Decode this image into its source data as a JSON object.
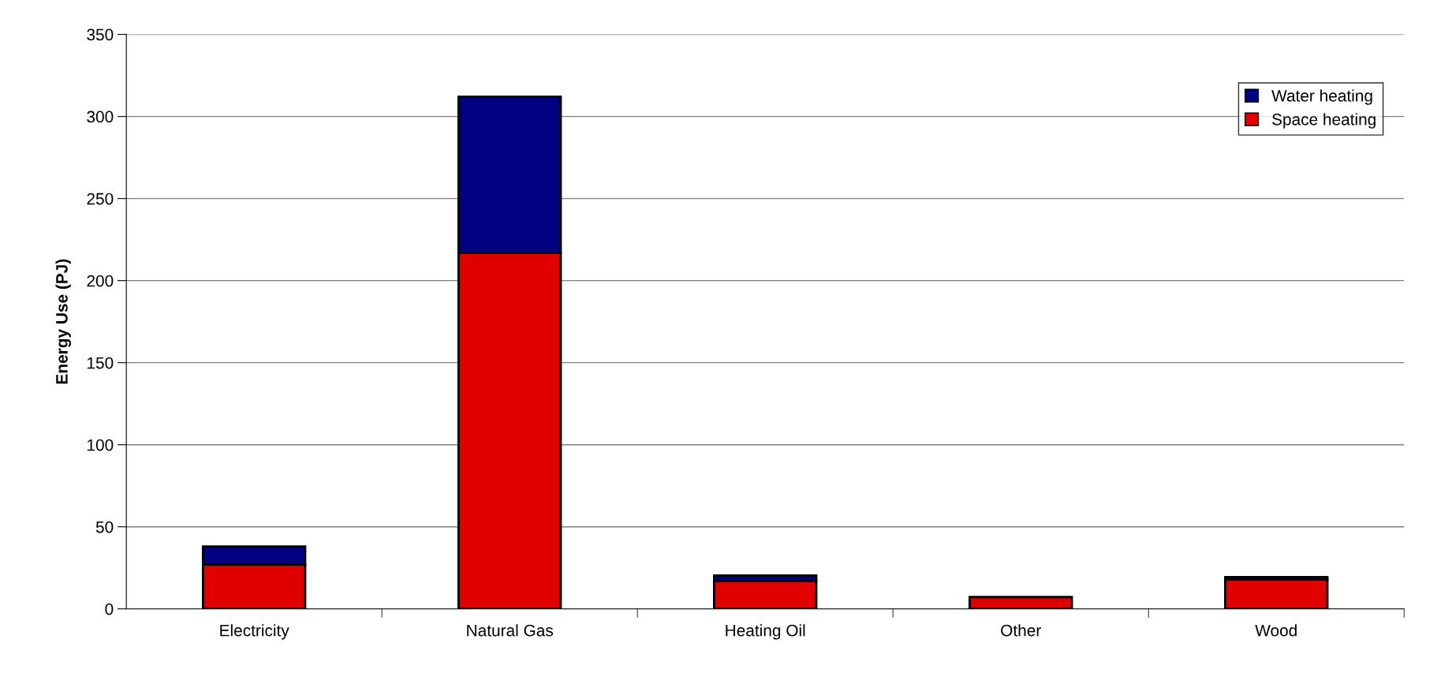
{
  "chart_data": {
    "type": "bar",
    "stacked": true,
    "ylabel": "Energy Use (PJ)",
    "categories": [
      "Electricity",
      "Natural Gas",
      "Heating Oil",
      "Other",
      "Wood"
    ],
    "series": [
      {
        "name": "Space heating",
        "color": "#e00000",
        "values": [
          27,
          217,
          17.1,
          7.2,
          17.9
        ]
      },
      {
        "name": "Water heating",
        "color": "#000080",
        "values": [
          11,
          95,
          3.3,
          null,
          1.5
        ]
      }
    ],
    "ylim": [
      0,
      350
    ],
    "yticks": [
      0,
      50,
      100,
      150,
      200,
      250,
      300,
      350
    ],
    "grid": "y",
    "legend": "top right"
  }
}
